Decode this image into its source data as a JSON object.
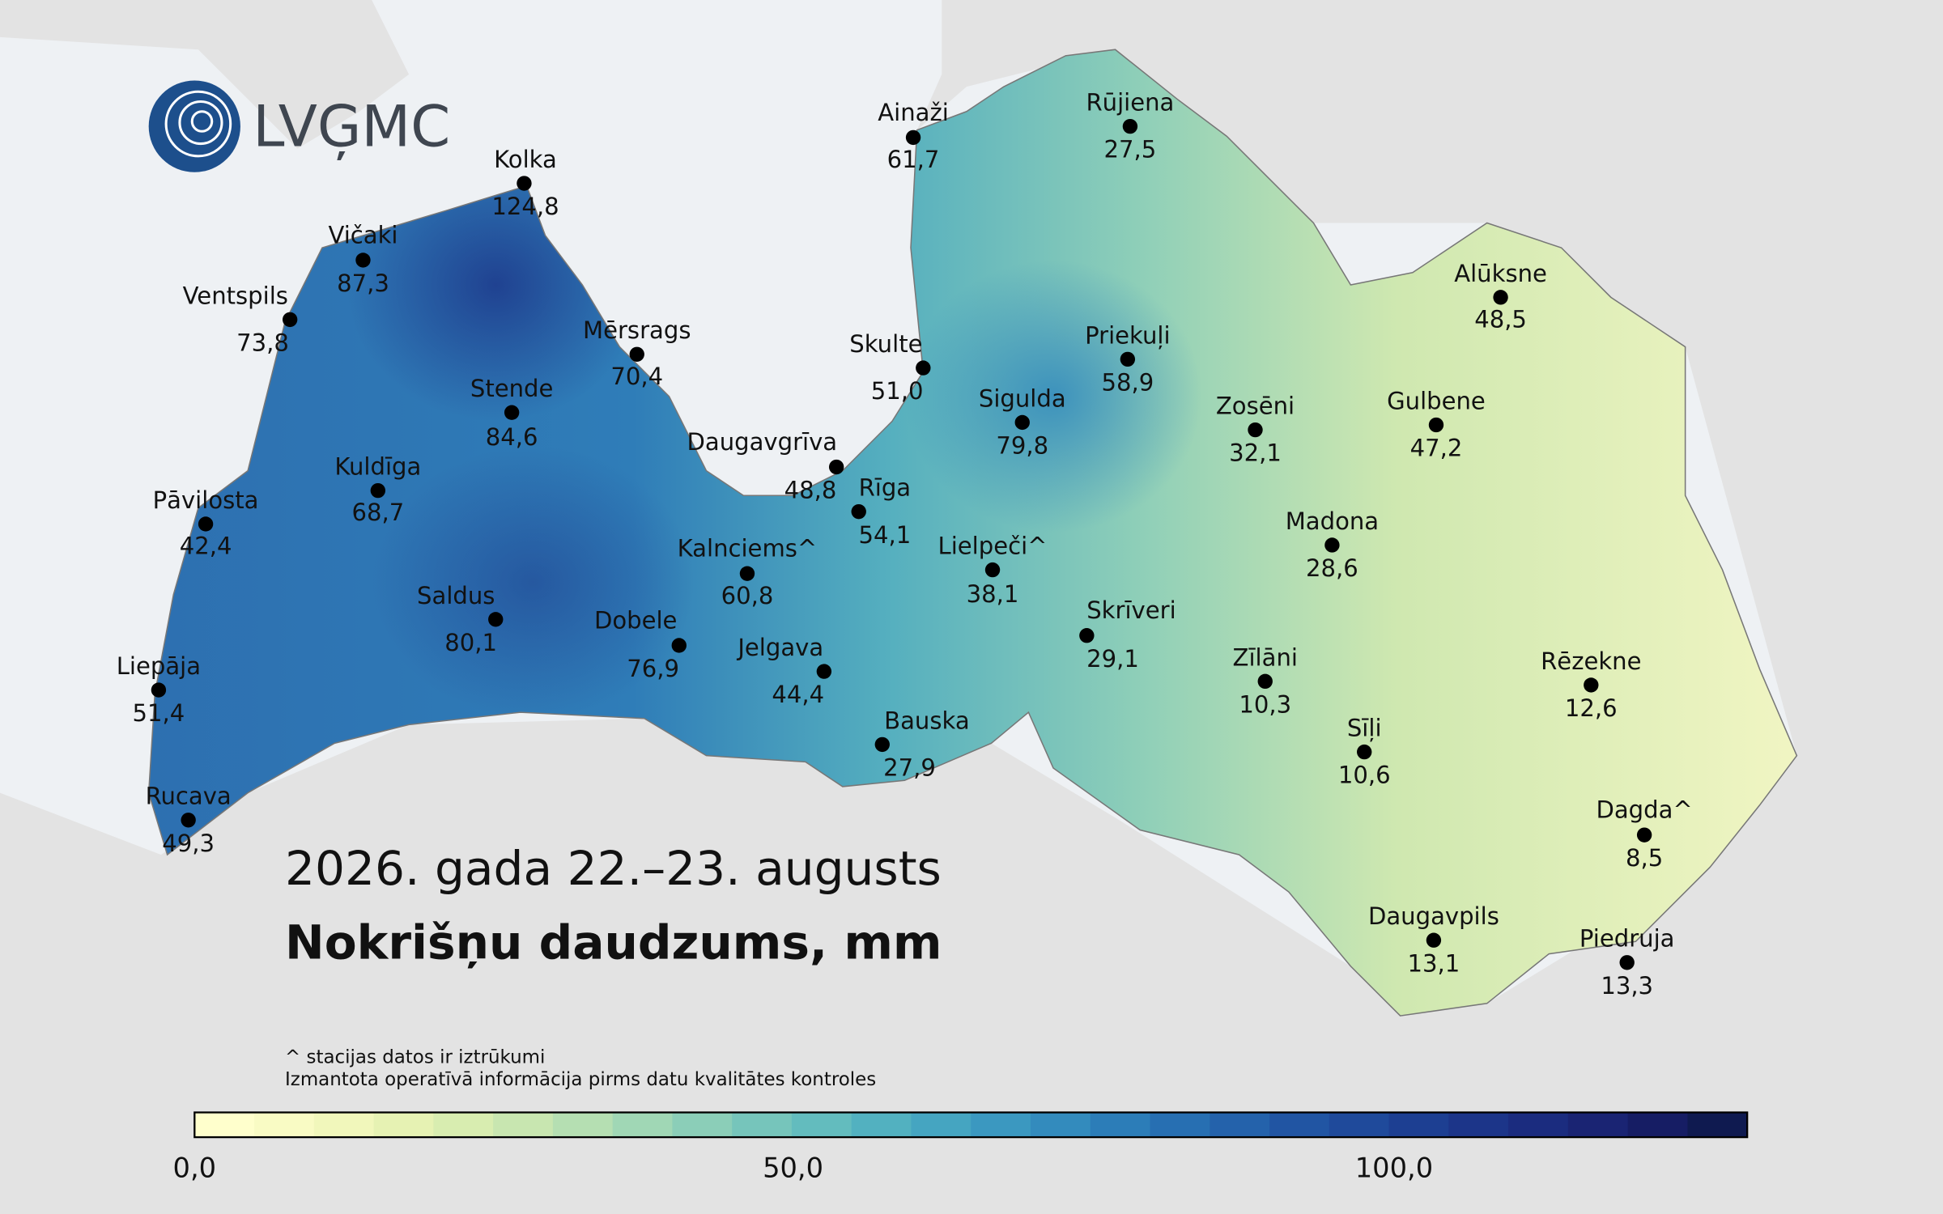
{
  "logo": "LVĢMC",
  "title": "2026. gada 22.–23. augusts",
  "subtitle": "Nokrišņu daudzums, mm",
  "notes": [
    "^ stacijas datos ir iztrūkumi",
    "Izmantota operatīvā informācija pirms datu kvalitātes kontroles"
  ],
  "colorbar": {
    "labels": [
      "0,0",
      "50,0",
      "100,0"
    ]
  },
  "stations": [
    {
      "name": "Ainaži",
      "value": "61,7"
    },
    {
      "name": "Rūjiena",
      "value": "27,5"
    },
    {
      "name": "Kolka",
      "value": "124,8"
    },
    {
      "name": "Vičaki",
      "value": "87,3"
    },
    {
      "name": "Ventspils",
      "value": "73,8"
    },
    {
      "name": "Mērsrags",
      "value": "70,4"
    },
    {
      "name": "Skulte",
      "value": "51,0"
    },
    {
      "name": "Stende",
      "value": "84,6"
    },
    {
      "name": "Sigulda",
      "value": "79,8"
    },
    {
      "name": "Priekuļi",
      "value": "58,9"
    },
    {
      "name": "Zosēni",
      "value": "32,1"
    },
    {
      "name": "Gulbene",
      "value": "47,2"
    },
    {
      "name": "Alūksne",
      "value": "48,5"
    },
    {
      "name": "Daugavgrīva",
      "value": "48,8"
    },
    {
      "name": "Rīga",
      "value": "54,1"
    },
    {
      "name": "Kuldīga",
      "value": "68,7"
    },
    {
      "name": "Pāvilosta",
      "value": "42,4"
    },
    {
      "name": "Madona",
      "value": "28,6"
    },
    {
      "name": "Kalnciems^",
      "value": "60,8"
    },
    {
      "name": "Lielpeči^",
      "value": "38,1"
    },
    {
      "name": "Saldus",
      "value": "80,1"
    },
    {
      "name": "Dobele",
      "value": "76,9"
    },
    {
      "name": "Skrīveri",
      "value": "29,1"
    },
    {
      "name": "Jelgava",
      "value": "44,4"
    },
    {
      "name": "Zīlāni",
      "value": "10,3"
    },
    {
      "name": "Rēzekne",
      "value": "12,6"
    },
    {
      "name": "Liepāja",
      "value": "51,4"
    },
    {
      "name": "Bauska",
      "value": "27,9"
    },
    {
      "name": "Sīļi",
      "value": "10,6"
    },
    {
      "name": "Rucava",
      "value": "49,3"
    },
    {
      "name": "Dagda^",
      "value": "8,5"
    },
    {
      "name": "Daugavpils",
      "value": "13,1"
    },
    {
      "name": "Piedruja",
      "value": "13,3"
    }
  ]
}
